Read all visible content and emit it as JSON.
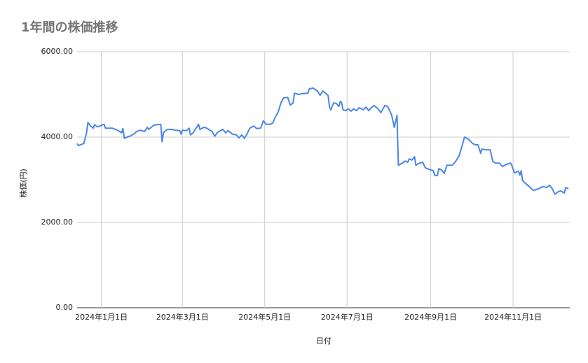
{
  "chart_data": {
    "type": "line",
    "title": "1年間の株価推移",
    "x_label": "日付",
    "y_label": "株価(円)",
    "x": [
      "2023-12-14",
      "2023-12-15",
      "2023-12-19",
      "2023-12-21",
      "2023-12-22",
      "2023-12-24",
      "2023-12-26",
      "2023-12-27",
      "2023-12-29",
      "2024-01-03",
      "2024-01-04",
      "2024-01-09",
      "2024-01-13",
      "2024-01-16",
      "2024-01-17",
      "2024-01-18",
      "2024-01-20",
      "2024-01-22",
      "2024-01-25",
      "2024-01-27",
      "2024-01-30",
      "2024-02-02",
      "2024-02-04",
      "2024-02-05",
      "2024-02-09",
      "2024-02-14",
      "2024-02-15",
      "2024-02-16",
      "2024-02-19",
      "2024-02-22",
      "2024-02-25",
      "2024-02-28",
      "2024-02-29",
      "2024-03-01",
      "2024-03-04",
      "2024-03-06",
      "2024-03-07",
      "2024-03-09",
      "2024-03-13",
      "2024-03-14",
      "2024-03-17",
      "2024-03-19",
      "2024-03-23",
      "2024-03-25",
      "2024-03-27",
      "2024-03-31",
      "2024-04-02",
      "2024-04-04",
      "2024-04-07",
      "2024-04-10",
      "2024-04-12",
      "2024-04-14",
      "2024-04-16",
      "2024-04-18",
      "2024-04-20",
      "2024-04-23",
      "2024-04-25",
      "2024-04-28",
      "2024-04-30",
      "2024-05-02",
      "2024-05-05",
      "2024-05-07",
      "2024-05-09",
      "2024-05-11",
      "2024-05-13",
      "2024-05-15",
      "2024-05-18",
      "2024-05-20",
      "2024-05-22",
      "2024-05-23",
      "2024-05-26",
      "2024-05-29",
      "2024-06-02",
      "2024-06-03",
      "2024-06-06",
      "2024-06-09",
      "2024-06-11",
      "2024-06-13",
      "2024-06-15",
      "2024-06-17",
      "2024-06-18",
      "2024-06-19",
      "2024-06-21",
      "2024-06-23",
      "2024-06-25",
      "2024-06-26",
      "2024-06-27",
      "2024-06-28",
      "2024-06-30",
      "2024-07-02",
      "2024-07-04",
      "2024-07-06",
      "2024-07-08",
      "2024-07-10",
      "2024-07-13",
      "2024-07-15",
      "2024-07-17",
      "2024-07-19",
      "2024-07-21",
      "2024-07-24",
      "2024-07-26",
      "2024-07-29",
      "2024-07-31",
      "2024-08-03",
      "2024-08-05",
      "2024-08-07",
      "2024-08-08",
      "2024-08-11",
      "2024-08-13",
      "2024-08-15",
      "2024-08-16",
      "2024-08-18",
      "2024-08-20",
      "2024-08-21",
      "2024-08-23",
      "2024-08-26",
      "2024-08-28",
      "2024-09-01",
      "2024-09-03",
      "2024-09-04",
      "2024-09-06",
      "2024-09-07",
      "2024-09-09",
      "2024-09-11",
      "2024-09-13",
      "2024-09-17",
      "2024-09-19",
      "2024-09-22",
      "2024-09-24",
      "2024-09-26",
      "2024-09-29",
      "2024-10-02",
      "2024-10-04",
      "2024-10-06",
      "2024-10-08",
      "2024-10-09",
      "2024-10-12",
      "2024-10-15",
      "2024-10-17",
      "2024-10-19",
      "2024-10-22",
      "2024-10-24",
      "2024-10-27",
      "2024-10-30",
      "2024-10-31",
      "2024-11-02",
      "2024-11-05",
      "2024-11-06",
      "2024-11-07",
      "2024-11-08",
      "2024-11-10",
      "2024-11-13",
      "2024-11-16",
      "2024-11-18",
      "2024-11-20",
      "2024-11-23",
      "2024-11-26",
      "2024-11-28",
      "2024-11-30",
      "2024-12-02",
      "2024-12-04",
      "2024-12-06",
      "2024-12-09",
      "2024-12-10",
      "2024-12-12"
    ],
    "series": [
      {
        "name": "株価",
        "color": "#4a86e8",
        "values": [
          3850,
          3800,
          3850,
          4100,
          4340,
          4260,
          4210,
          4290,
          4240,
          4300,
          4210,
          4210,
          4160,
          4100,
          4200,
          3970,
          4000,
          4020,
          4070,
          4130,
          4160,
          4130,
          4230,
          4180,
          4280,
          4300,
          3890,
          4110,
          4180,
          4180,
          4160,
          4150,
          4070,
          4160,
          4150,
          4210,
          4050,
          4100,
          4300,
          4180,
          4230,
          4210,
          4130,
          4020,
          4110,
          4180,
          4100,
          4150,
          4070,
          4050,
          3980,
          4050,
          3970,
          4080,
          4210,
          4260,
          4200,
          4210,
          4380,
          4300,
          4300,
          4330,
          4480,
          4590,
          4800,
          4920,
          4930,
          4750,
          4800,
          5030,
          5000,
          5020,
          5030,
          5130,
          5150,
          5080,
          4980,
          5080,
          5030,
          4970,
          4700,
          4640,
          4800,
          4790,
          4720,
          4840,
          4800,
          4640,
          4620,
          4660,
          4610,
          4660,
          4620,
          4690,
          4640,
          4700,
          4620,
          4690,
          4740,
          4660,
          4570,
          4740,
          4720,
          4520,
          4230,
          4510,
          3340,
          3390,
          3440,
          3410,
          3490,
          3460,
          3540,
          3340,
          3380,
          3410,
          3280,
          3230,
          3210,
          3100,
          3100,
          3260,
          3230,
          3150,
          3340,
          3340,
          3410,
          3560,
          3770,
          4000,
          3950,
          3850,
          3820,
          3820,
          3620,
          3720,
          3700,
          3700,
          3430,
          3390,
          3390,
          3310,
          3360,
          3390,
          3340,
          3160,
          3200,
          3110,
          3210,
          2980,
          2920,
          2840,
          2750,
          2770,
          2790,
          2840,
          2820,
          2870,
          2790,
          2660,
          2710,
          2740,
          2690,
          2820,
          2790
        ]
      }
    ],
    "xlim": [
      "2023-12-14",
      "2024-12-13"
    ],
    "xticks": [
      {
        "value": "2024-01-01",
        "label": "2024年1月1日"
      },
      {
        "value": "2024-03-01",
        "label": "2024年3月1日"
      },
      {
        "value": "2024-05-01",
        "label": "2024年5月1日"
      },
      {
        "value": "2024-07-01",
        "label": "2024年7月1日"
      },
      {
        "value": "2024-09-01",
        "label": "2024年9月1日"
      },
      {
        "value": "2024-11-01",
        "label": "2024年11月1日"
      }
    ],
    "ylim": [
      0,
      6000
    ],
    "yticks": [
      {
        "value": 0,
        "label": "0.00"
      },
      {
        "value": 2000,
        "label": "2000.00"
      },
      {
        "value": 4000,
        "label": "4000.00"
      },
      {
        "value": 6000,
        "label": "6000.00"
      }
    ],
    "grid": true
  }
}
